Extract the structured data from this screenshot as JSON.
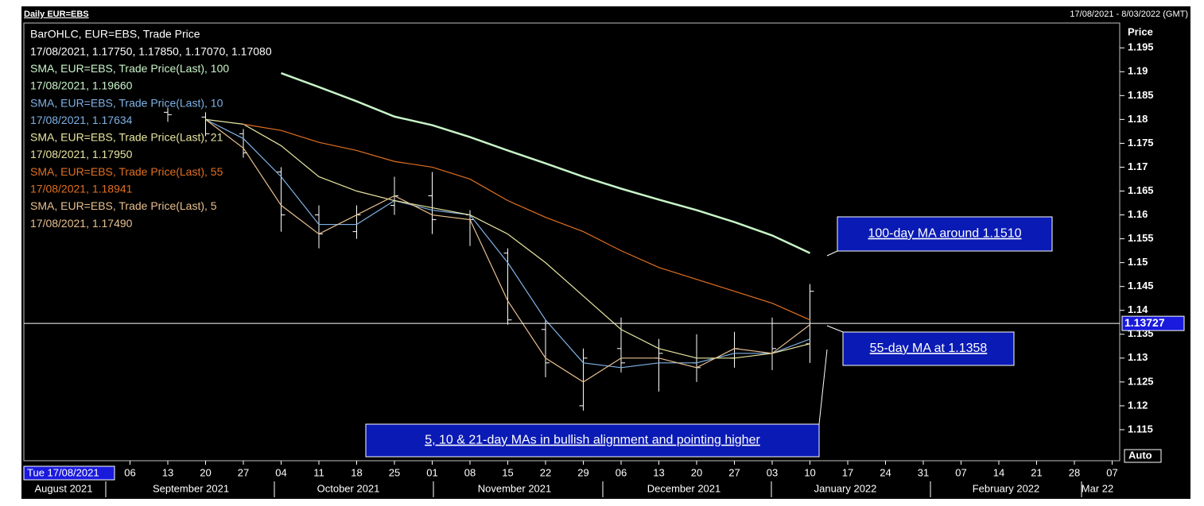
{
  "chart_data": {
    "type": "ohlc",
    "title": "Daily EUR=EBS",
    "date_range": "17/08/2021 - 8/03/2022 (GMT)",
    "y_axis_label": "Price",
    "auto_button": "Auto",
    "cursor_date": "Tue 17/08/2021",
    "crosshair_value": 1.13727,
    "categories": [
      null,
      null,
      null,
      "06",
      "13",
      "20",
      "27",
      "04",
      "11",
      "18",
      "25",
      "01",
      "08",
      "15",
      "22",
      "29",
      "06",
      "13",
      "20",
      "27",
      "03",
      "10",
      "17",
      "24",
      "31",
      "07",
      "14",
      "21",
      "28",
      "07"
    ],
    "months": [
      "August 2021",
      "September 2021",
      "October 2021",
      "November 2021",
      "December 2021",
      "January 2022",
      "February 2022",
      "Mar 22"
    ],
    "ylim": [
      1.1085,
      1.2002
    ],
    "yticks": [
      1.195,
      1.19,
      1.185,
      1.18,
      1.175,
      1.17,
      1.165,
      1.16,
      1.155,
      1.15,
      1.145,
      1.14,
      1.135,
      1.13,
      1.125,
      1.12,
      1.115
    ],
    "ohlc": {
      "name": "BarOHLC, EUR=EBS, Trade Price",
      "info": "17/08/2021, 1.17750, 1.17850, 1.17070, 1.17080",
      "color": "#ffffff",
      "open": [
        null,
        null,
        null,
        null,
        1.1815,
        1.1805,
        1.177,
        1.169,
        1.16,
        1.1565,
        1.162,
        1.164,
        1.16,
        1.152,
        1.136,
        1.12,
        1.132,
        1.13,
        1.129,
        1.13,
        1.131,
        1.133,
        null,
        null,
        null,
        null,
        null,
        null,
        null,
        null
      ],
      "high": [
        null,
        null,
        null,
        null,
        1.1825,
        1.1815,
        1.178,
        1.17,
        1.162,
        1.162,
        1.168,
        1.169,
        1.161,
        1.153,
        1.138,
        1.132,
        1.1385,
        1.134,
        1.135,
        1.1355,
        1.1385,
        1.1455,
        null,
        null,
        null,
        null,
        null,
        null,
        null,
        null
      ],
      "low": [
        null,
        null,
        null,
        null,
        1.1795,
        1.1765,
        1.172,
        1.1565,
        1.153,
        1.155,
        1.16,
        1.156,
        1.1535,
        1.137,
        1.126,
        1.119,
        1.127,
        1.123,
        1.125,
        1.128,
        1.1275,
        1.129,
        null,
        null,
        null,
        null,
        null,
        null,
        null,
        null
      ],
      "close": [
        null,
        null,
        null,
        null,
        1.181,
        1.177,
        1.173,
        1.16,
        1.156,
        1.16,
        1.164,
        1.159,
        1.159,
        1.138,
        1.129,
        1.13,
        1.129,
        1.131,
        1.128,
        1.132,
        1.132,
        1.144,
        null,
        null,
        null,
        null,
        null,
        null,
        null,
        null
      ]
    },
    "series": [
      {
        "name": "SMA, EUR=EBS, Trade Price(Last),  100",
        "info": "17/08/2021, 1.19660",
        "color": "#c8f5c8",
        "values": [
          null,
          null,
          null,
          null,
          null,
          null,
          null,
          1.1897,
          1.1868,
          1.1838,
          1.1806,
          1.1788,
          1.1763,
          1.1735,
          1.1708,
          1.168,
          1.1655,
          1.1632,
          1.161,
          1.1585,
          1.1557,
          1.152,
          null,
          null,
          null,
          null,
          null,
          null,
          null,
          null
        ]
      },
      {
        "name": "SMA, EUR=EBS, Trade Price(Last),  10",
        "info": "17/08/2021, 1.17634",
        "color": "#7fb2e6",
        "values": [
          null,
          null,
          null,
          null,
          null,
          1.18,
          1.176,
          1.168,
          1.158,
          1.158,
          1.163,
          1.161,
          1.16,
          1.15,
          1.138,
          1.129,
          1.128,
          1.129,
          1.129,
          1.131,
          1.131,
          1.134,
          null,
          null,
          null,
          null,
          null,
          null,
          null,
          null
        ]
      },
      {
        "name": "SMA, EUR=EBS, Trade Price(Last),  21",
        "info": "17/08/2021, 1.17950",
        "color": "#e8e6a0",
        "values": [
          null,
          null,
          null,
          null,
          null,
          1.18,
          1.179,
          1.1745,
          1.168,
          1.165,
          1.163,
          1.1615,
          1.16,
          1.156,
          1.15,
          1.143,
          1.136,
          1.132,
          1.13,
          1.13,
          1.131,
          1.133,
          null,
          null,
          null,
          null,
          null,
          null,
          null,
          null
        ]
      },
      {
        "name": "SMA, EUR=EBS, Trade Price(Last),  55",
        "info": "17/08/2021, 1.18941",
        "color": "#e07020",
        "values": [
          null,
          null,
          null,
          null,
          null,
          null,
          1.179,
          1.1777,
          1.1752,
          1.1735,
          1.1712,
          1.17,
          1.1675,
          1.163,
          1.1595,
          1.1565,
          1.1525,
          1.149,
          1.1465,
          1.144,
          1.1415,
          1.138,
          null,
          null,
          null,
          null,
          null,
          null,
          null,
          null
        ]
      },
      {
        "name": "SMA, EUR=EBS, Trade Price(Last),  5",
        "info": "17/08/2021, 1.17490",
        "color": "#e8c090",
        "values": [
          null,
          null,
          null,
          null,
          null,
          1.18,
          1.174,
          1.162,
          1.156,
          1.16,
          1.164,
          1.16,
          1.159,
          1.142,
          1.13,
          1.125,
          1.13,
          1.13,
          1.128,
          1.132,
          1.131,
          1.137,
          null,
          null,
          null,
          null,
          null,
          null,
          null,
          null
        ]
      }
    ],
    "annotations": [
      "100-day MA around 1.1510",
      "55-day MA at 1.1358",
      "5, 10 & 21-day MAs in bullish alignment and pointing higher"
    ]
  }
}
